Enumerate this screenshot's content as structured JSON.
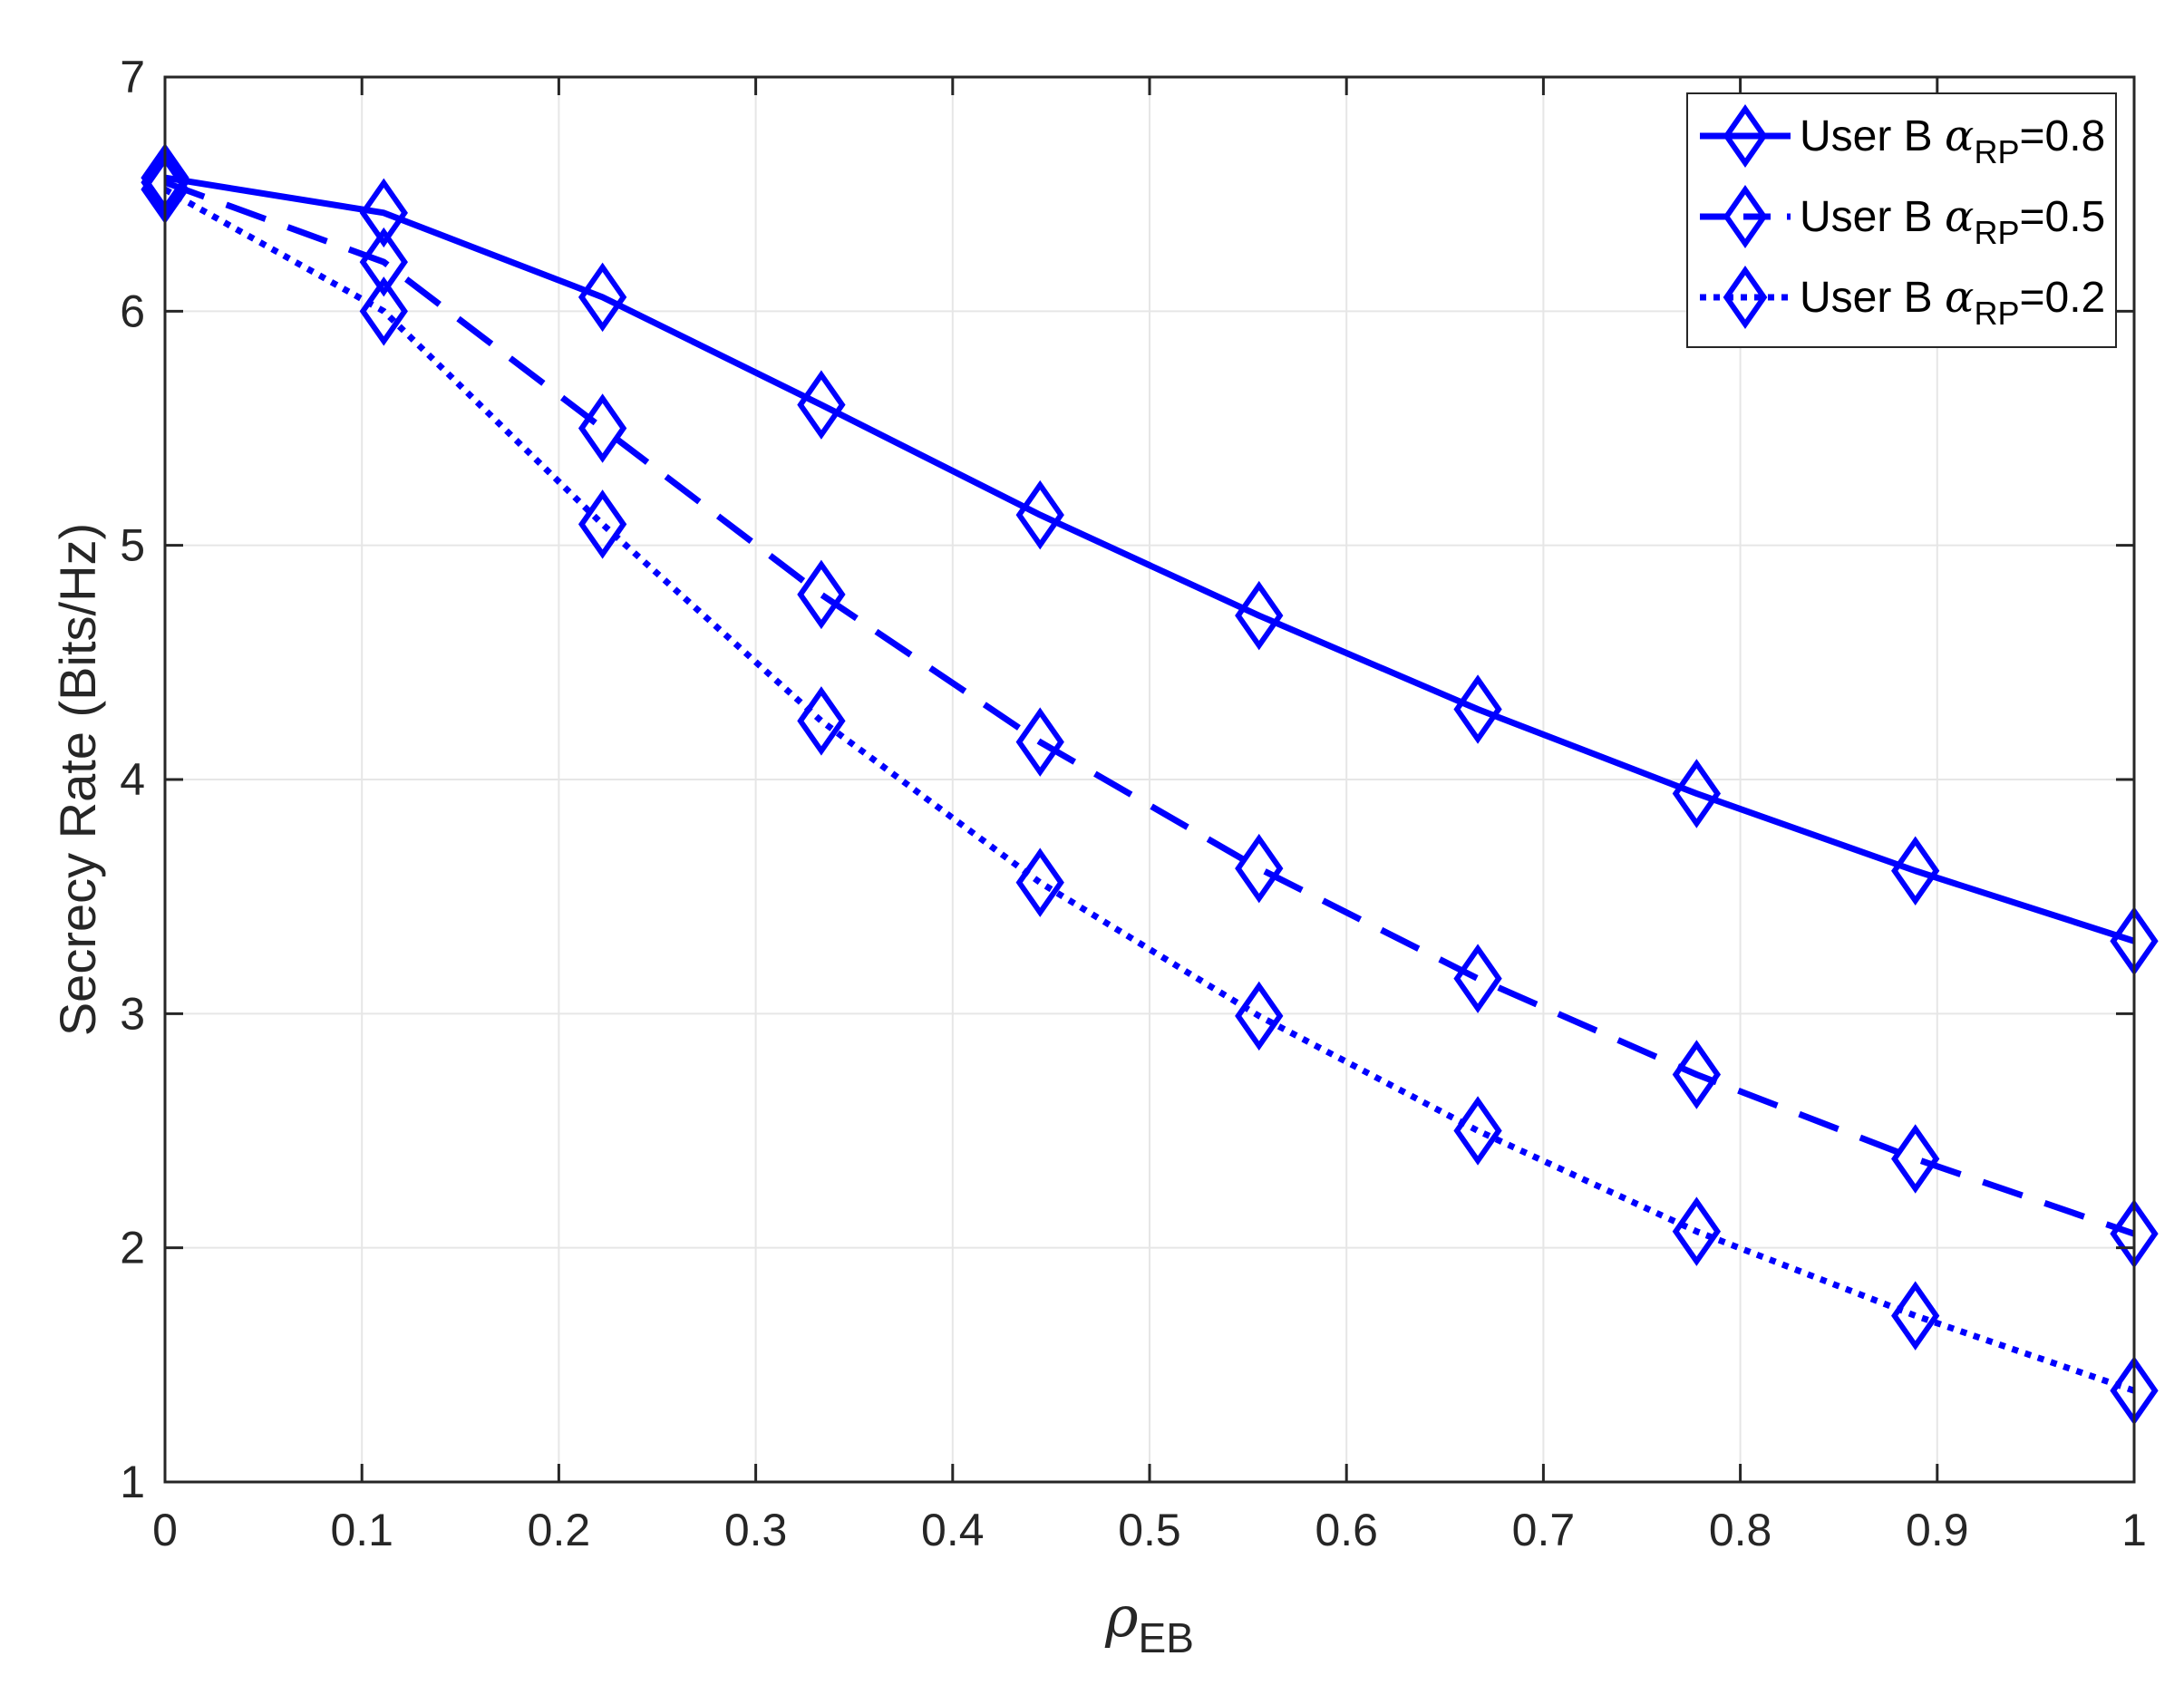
{
  "chart_data": {
    "type": "line",
    "xlabel": {
      "main": "ρ",
      "sub": "EB"
    },
    "ylabel": "Secrecy Rate (Bits/Hz)",
    "xlim": [
      0,
      1
    ],
    "ylim": [
      1,
      7
    ],
    "xticks": [
      0,
      0.1,
      0.2,
      0.3,
      0.4,
      0.5,
      0.6,
      0.7,
      0.8,
      0.9,
      1
    ],
    "xtick_labels": [
      "0",
      "0.1",
      "0.2",
      "0.3",
      "0.4",
      "0.5",
      "0.6",
      "0.7",
      "0.8",
      "0.9",
      "1"
    ],
    "yticks": [
      1,
      2,
      3,
      4,
      5,
      6,
      7
    ],
    "ytick_labels": [
      "1",
      "2",
      "3",
      "4",
      "5",
      "6",
      "7"
    ],
    "grid": true,
    "legend_position": "top-right",
    "x": [
      0,
      0.1111,
      0.2222,
      0.3333,
      0.4444,
      0.5556,
      0.6667,
      0.7778,
      0.8889,
      1.0
    ],
    "series": [
      {
        "name": {
          "prefix": "User B ",
          "greek": "α",
          "sub": "RP",
          "suffix": "=0.8"
        },
        "line_style": "solid",
        "marker": "diamond",
        "color": "#0000ff",
        "values": [
          6.57,
          6.42,
          6.06,
          5.6,
          5.13,
          4.7,
          4.3,
          3.94,
          3.61,
          3.31
        ]
      },
      {
        "name": {
          "prefix": "User B ",
          "greek": "α",
          "sub": "RP",
          "suffix": "=0.5"
        },
        "line_style": "dashed",
        "marker": "diamond",
        "color": "#0000ff",
        "values": [
          6.55,
          6.21,
          5.5,
          4.79,
          4.16,
          3.62,
          3.15,
          2.74,
          2.38,
          2.06
        ]
      },
      {
        "name": {
          "prefix": "User B ",
          "greek": "α",
          "sub": "RP",
          "suffix": "=0.2"
        },
        "line_style": "dotted",
        "marker": "diamond",
        "color": "#0000ff",
        "values": [
          6.52,
          6.0,
          5.09,
          4.25,
          3.56,
          2.99,
          2.5,
          2.07,
          1.71,
          1.39
        ]
      }
    ]
  }
}
